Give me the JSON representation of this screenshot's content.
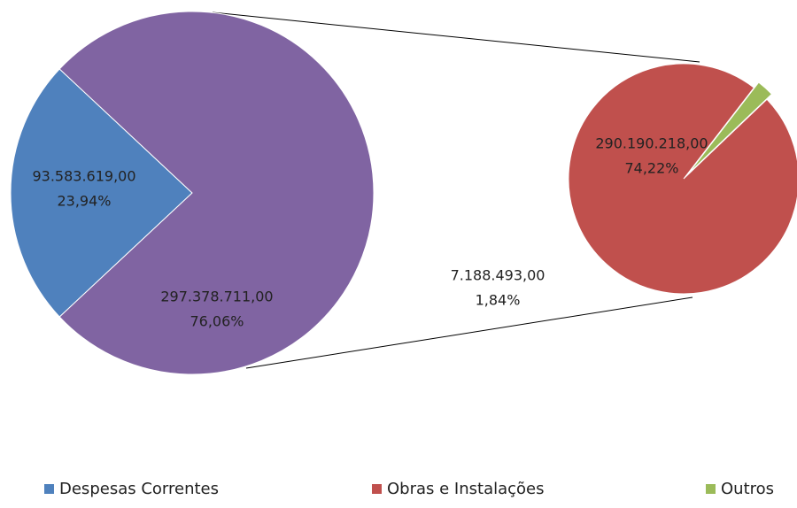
{
  "chart_data": {
    "type": "pie-of-pie",
    "main": [
      {
        "name": "Despesas Correntes",
        "color": "#4f81bd",
        "value": 93583619,
        "value_label": "93.583.619,00",
        "percent": 23.94,
        "percent_label": "23,94%"
      },
      {
        "color": "#8064a2",
        "value": 297378711,
        "value_label": "297.378.711,00",
        "percent": 76.06,
        "percent_label": "76,06%"
      }
    ],
    "secondary": [
      {
        "name": "Obras e Instalações",
        "color": "#c0504d",
        "value": 290190218,
        "value_label": "290.190.218,00",
        "percent": 74.22,
        "percent_label": "74,22%"
      },
      {
        "name": "Outros",
        "color": "#9bbb59",
        "value": 7188493,
        "value_label": "7.188.493,00",
        "percent": 1.84,
        "percent_label": "1,84%"
      }
    ]
  }
}
